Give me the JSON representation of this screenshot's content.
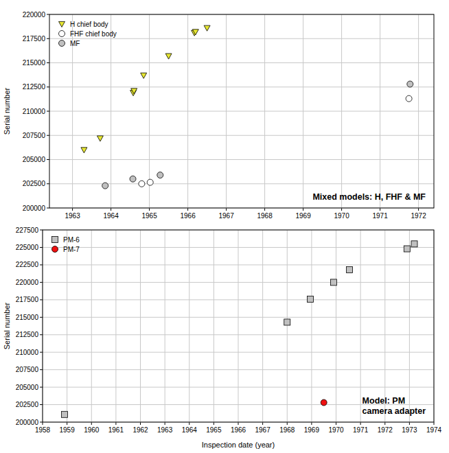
{
  "chart_data": [
    {
      "type": "scatter",
      "annotation": [
        "Mixed models: H, FHF & MF"
      ],
      "y_label": "Serial number",
      "xlim": [
        1962.4,
        1972.4
      ],
      "xticks": [
        1963,
        1964,
        1965,
        1966,
        1967,
        1968,
        1969,
        1970,
        1971,
        1972
      ],
      "ylim": [
        200000,
        220000
      ],
      "yticks": [
        200000,
        202500,
        205000,
        207500,
        210000,
        212500,
        215000,
        217500,
        220000
      ],
      "grid": true,
      "legend": "upper left",
      "series": [
        {
          "name": "H chief body",
          "color": "#e6e632",
          "marker": "triangle_down",
          "x": [
            1963.3,
            1963.72,
            1964.58,
            1964.6,
            1964.85,
            1965.5,
            1966.17,
            1966.2,
            1966.5
          ],
          "values": [
            206000,
            207200,
            211900,
            212100,
            213700,
            215700,
            218100,
            218200,
            218600
          ]
        },
        {
          "name": "FHF chief body",
          "color": "#ffffff",
          "marker": "circle",
          "x": [
            1964.8,
            1965.02,
            1971.75
          ],
          "values": [
            202500,
            202650,
            211300
          ]
        },
        {
          "name": "MF",
          "color": "#c0c0c0",
          "marker": "circle",
          "x": [
            1963.85,
            1964.57,
            1965.28,
            1971.78
          ],
          "values": [
            202300,
            203000,
            203400,
            212800
          ]
        }
      ]
    },
    {
      "type": "scatter",
      "annotation": [
        "Model: PM",
        "camera adapter"
      ],
      "x_label": "Inspection date (year)",
      "y_label": "Serial number",
      "xlim": [
        1958,
        1974
      ],
      "xticks": [
        1958,
        1959,
        1960,
        1961,
        1962,
        1963,
        1964,
        1965,
        1966,
        1967,
        1968,
        1969,
        1970,
        1971,
        1972,
        1973,
        1974
      ],
      "ylim": [
        200000,
        227500
      ],
      "yticks": [
        200000,
        202500,
        205000,
        207500,
        210000,
        212500,
        215000,
        217500,
        220000,
        222500,
        225000,
        227500
      ],
      "grid": true,
      "legend": "upper left",
      "series": [
        {
          "name": "PM-6",
          "color": "#c0c0c0",
          "marker": "square",
          "x": [
            1958.9,
            1968.0,
            1968.95,
            1969.9,
            1970.55,
            1972.9,
            1973.2
          ],
          "values": [
            201100,
            214300,
            217600,
            220000,
            221800,
            224800,
            225500
          ]
        },
        {
          "name": "PM-7",
          "color": "#ee1111",
          "marker": "circle",
          "x": [
            1969.5
          ],
          "values": [
            202800
          ]
        }
      ]
    }
  ]
}
